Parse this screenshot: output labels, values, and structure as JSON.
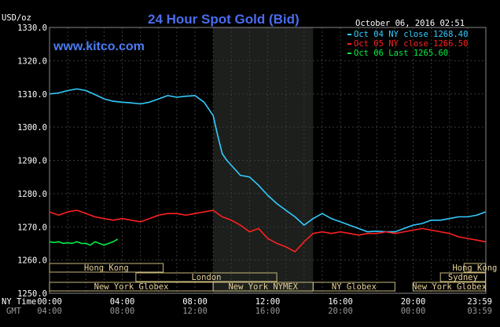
{
  "chart_data": {
    "type": "line",
    "title": "24 Hour Spot Gold (Bid)",
    "ylabel": "USD/oz",
    "date_label": "October 06, 2016 02:51",
    "watermark": "www.kitco.com",
    "ylim": [
      1250,
      1330
    ],
    "y_ticks": [
      "1330.0",
      "1320.0",
      "1310.0",
      "1300.0",
      "1290.0",
      "1280.0",
      "1270.0",
      "1260.0",
      "1250.0"
    ],
    "xlim": [
      0,
      24
    ],
    "x_tick_labels": [
      "00:00",
      "04:00",
      "08:00",
      "12:00",
      "16:00",
      "20:00",
      "23:59"
    ],
    "gmt_tick_labels": [
      "04:00",
      "08:00",
      "12:00",
      "16:00",
      "20:00",
      "00:00",
      "03:59"
    ],
    "x_row_label": "NY Time",
    "gmt_row_label": "GMT",
    "legend_placement": "top-right",
    "highlight_range": [
      9,
      14.5
    ],
    "series": [
      {
        "name": "Oct 04 NY close 1268.40",
        "color": "#33ccff",
        "x": [
          0,
          0.5,
          1,
          1.5,
          2,
          2.5,
          3,
          3.5,
          4,
          4.5,
          5,
          5.5,
          6,
          6.5,
          7,
          7.5,
          8,
          8.5,
          9,
          9.25,
          9.5,
          9.75,
          10,
          10.5,
          11,
          11.5,
          12,
          12.5,
          13,
          13.5,
          14,
          14.5,
          15,
          15.5,
          16,
          16.5,
          17,
          17.5,
          18,
          18.5,
          19,
          19.5,
          20,
          20.5,
          21,
          21.5,
          22,
          22.5,
          23,
          23.5,
          23.98
        ],
        "y": [
          1310.0,
          1310.3,
          1311.0,
          1311.5,
          1311.0,
          1309.8,
          1308.5,
          1307.8,
          1307.5,
          1307.3,
          1307.0,
          1307.5,
          1308.5,
          1309.5,
          1309.0,
          1309.3,
          1309.5,
          1307.5,
          1303.5,
          1297.5,
          1292.0,
          1290.0,
          1288.5,
          1285.5,
          1285.0,
          1282.5,
          1279.5,
          1277.0,
          1275.0,
          1273.0,
          1270.5,
          1272.5,
          1274.0,
          1272.5,
          1271.5,
          1270.5,
          1269.5,
          1268.5,
          1268.7,
          1268.5,
          1268.5,
          1269.5,
          1270.5,
          1271.0,
          1272.0,
          1272.0,
          1272.5,
          1273.0,
          1273.0,
          1273.5,
          1274.5
        ]
      },
      {
        "name": "Oct 05 NY close 1266.50",
        "color": "#ff2020",
        "x": [
          0,
          0.5,
          1,
          1.5,
          2,
          2.5,
          3,
          3.5,
          4,
          4.5,
          5,
          5.5,
          6,
          6.5,
          7,
          7.5,
          8,
          8.5,
          9,
          9.5,
          10,
          10.5,
          11,
          11.5,
          12,
          12.5,
          13,
          13.5,
          14,
          14.5,
          15,
          15.5,
          16,
          16.5,
          17,
          17.5,
          18,
          18.5,
          19,
          19.5,
          20,
          20.5,
          21,
          21.5,
          22,
          22.5,
          23,
          23.5,
          23.98
        ],
        "y": [
          1274.5,
          1273.5,
          1274.5,
          1275.0,
          1274.0,
          1273.0,
          1272.5,
          1272.0,
          1272.5,
          1272.0,
          1271.5,
          1272.5,
          1273.5,
          1274.0,
          1274.0,
          1273.5,
          1274.0,
          1274.5,
          1275.0,
          1273.0,
          1272.0,
          1270.5,
          1268.5,
          1269.5,
          1266.5,
          1265.0,
          1264.0,
          1262.5,
          1265.5,
          1268.0,
          1268.5,
          1268.0,
          1268.5,
          1268.0,
          1267.5,
          1268.0,
          1268.0,
          1268.5,
          1268.0,
          1268.5,
          1269.0,
          1269.5,
          1269.0,
          1268.5,
          1268.0,
          1267.0,
          1266.5,
          1266.0,
          1265.5
        ]
      },
      {
        "name": "Oct 06 Last 1265.60",
        "color": "#00ee44",
        "x": [
          0,
          0.25,
          0.5,
          0.75,
          1,
          1.25,
          1.5,
          1.75,
          2,
          2.25,
          2.5,
          2.75,
          3,
          3.25,
          3.5,
          3.75
        ],
        "y": [
          1265.5,
          1265.3,
          1265.5,
          1265.0,
          1265.2,
          1265.0,
          1265.5,
          1265.0,
          1265.0,
          1264.5,
          1265.5,
          1265.0,
          1264.5,
          1265.0,
          1265.5,
          1266.3
        ]
      }
    ],
    "sessions": [
      {
        "label": "Hong Kong",
        "start": 0,
        "end": 6.25,
        "row": 0
      },
      {
        "label": "Hong Kong",
        "start": 22.8,
        "end": 23.98,
        "row": 0
      },
      {
        "label": "London",
        "start": 4.75,
        "end": 12.5,
        "row": 1
      },
      {
        "label": "Sydney",
        "start": 21.5,
        "end": 23.98,
        "row": 1
      },
      {
        "label": "New York Globex",
        "start": 0,
        "end": 9.0,
        "row": 2
      },
      {
        "label": "New York NYMEX",
        "start": 9.0,
        "end": 14.5,
        "row": 2
      },
      {
        "label": "NY Globex",
        "start": 14.5,
        "end": 19.0,
        "row": 2
      },
      {
        "label": "New York Globex",
        "start": 20.0,
        "end": 23.98,
        "row": 2
      }
    ]
  }
}
